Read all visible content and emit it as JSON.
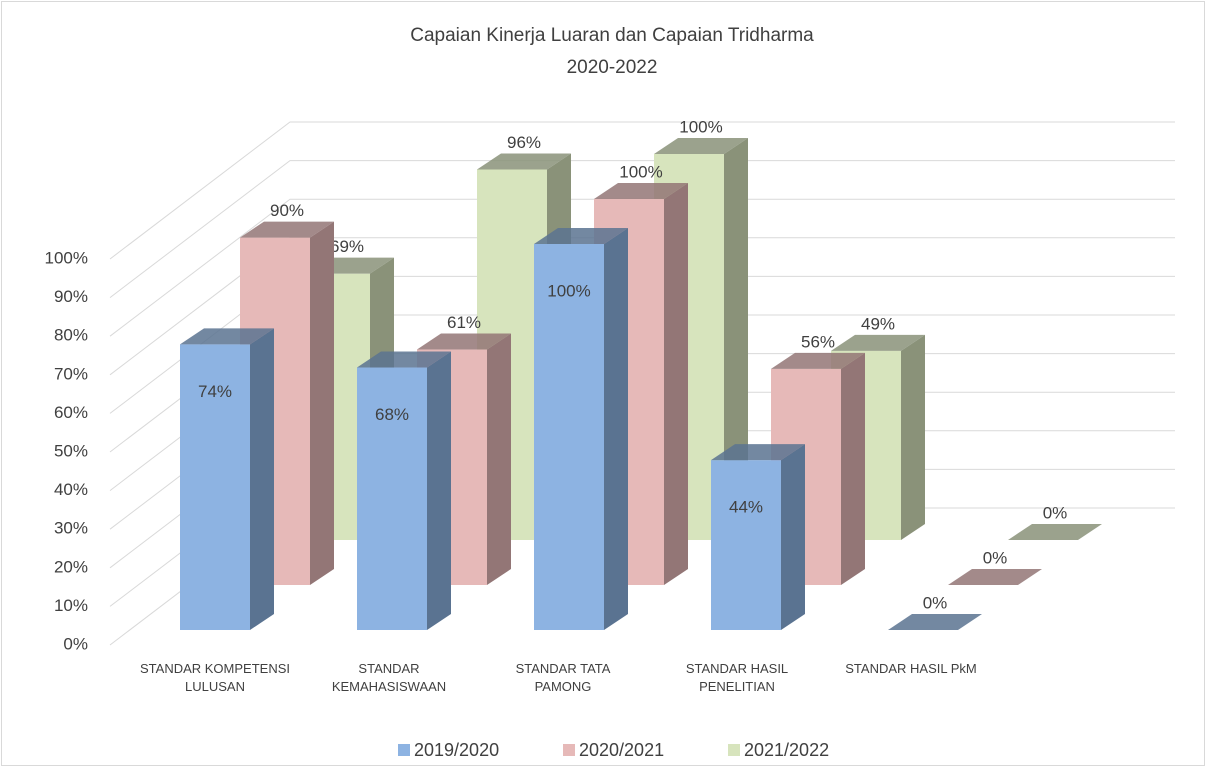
{
  "chart_data": {
    "type": "bar3d",
    "title": "Capaian Kinerja Luaran dan Capaian Tridharma",
    "subtitle": "2020-2022",
    "categories": [
      "STANDAR KOMPETENSI LULUSAN",
      "STANDAR KEMAHASISWAAN",
      "STANDAR TATA PAMONG",
      "STANDAR HASIL PENELITIAN",
      "STANDAR HASIL PkM"
    ],
    "series": [
      {
        "name": "2019/2020",
        "color": "#8db3e2",
        "values": [
          74,
          68,
          100,
          44,
          0
        ],
        "value_labels": [
          "74%",
          "68%",
          "100%",
          "44%",
          "0%"
        ]
      },
      {
        "name": "2020/2021",
        "color": "#e6b9b8",
        "values": [
          90,
          61,
          100,
          56,
          0
        ],
        "value_labels": [
          "90%",
          "61%",
          "100%",
          "56%",
          "0%"
        ]
      },
      {
        "name": "2021/2022",
        "color": "#d7e4bd",
        "values": [
          69,
          96,
          100,
          49,
          0
        ],
        "value_labels": [
          "69%",
          "96%",
          "100%",
          "49%",
          "0%"
        ]
      }
    ],
    "ylim": [
      0,
      100
    ],
    "yticks": [
      {
        "value": 0,
        "label": "0%"
      },
      {
        "value": 10,
        "label": "10%"
      },
      {
        "value": 20,
        "label": "20%"
      },
      {
        "value": 30,
        "label": "30%"
      },
      {
        "value": 40,
        "label": "40%"
      },
      {
        "value": 50,
        "label": "50%"
      },
      {
        "value": 60,
        "label": "60%"
      },
      {
        "value": 70,
        "label": "70%"
      },
      {
        "value": 80,
        "label": "80%"
      },
      {
        "value": 90,
        "label": "90%"
      },
      {
        "value": 100,
        "label": "100%"
      }
    ],
    "grid": true,
    "legend": "bottom"
  }
}
